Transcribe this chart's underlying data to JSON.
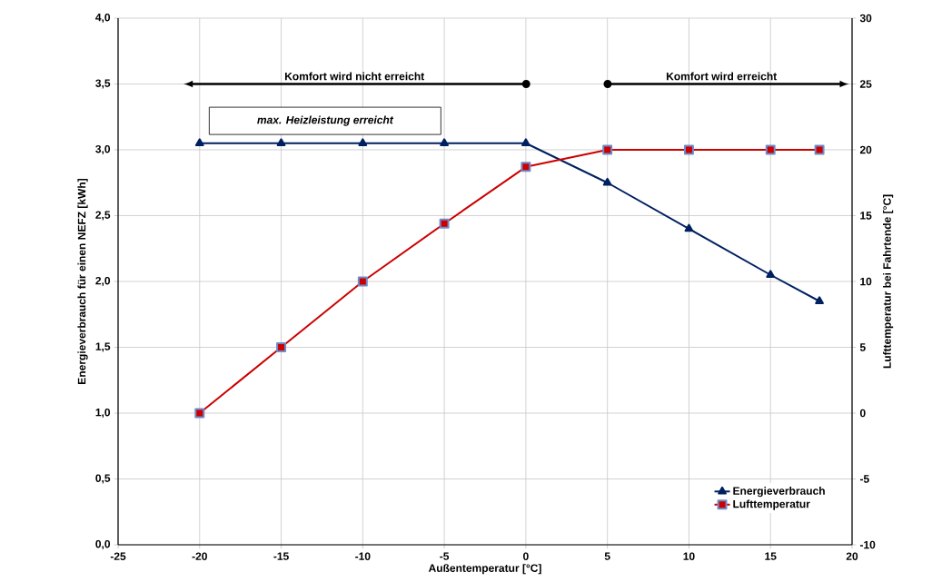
{
  "chart_data": {
    "type": "line",
    "xlabel": "Außentemperatur [°C]",
    "ylabel": "Energieverbrauch für einen NEFZ [kWh]",
    "y2label": "Lufttemperatur bei Fahrtende [°C]",
    "x": [
      -20,
      -15,
      -10,
      -5,
      0,
      5,
      10,
      15,
      18
    ],
    "series": [
      {
        "name": "Energieverbrauch",
        "color": "#002060",
        "marker": "triangle",
        "values": [
          3.05,
          3.05,
          3.05,
          3.05,
          3.05,
          2.75,
          2.4,
          2.05,
          1.85
        ]
      },
      {
        "name": "Lufttemperatur",
        "color": "#cc0000",
        "marker": "square",
        "axis": "y2",
        "values": [
          0,
          5,
          10,
          14.4,
          18.7,
          20,
          20,
          20,
          20
        ]
      }
    ],
    "xlim": [
      -25,
      20
    ],
    "xticks": [
      -25,
      -20,
      -15,
      -10,
      -5,
      0,
      5,
      10,
      15,
      20
    ],
    "ylim": [
      0,
      4
    ],
    "yticks": [
      {
        "value": 0,
        "label": "0,0"
      },
      {
        "value": 0.5,
        "label": "0,5"
      },
      {
        "value": 1,
        "label": "1,0"
      },
      {
        "value": 1.5,
        "label": "1,5"
      },
      {
        "value": 2,
        "label": "2,0"
      },
      {
        "value": 2.5,
        "label": "2,5"
      },
      {
        "value": 3,
        "label": "3,0"
      },
      {
        "value": 3.5,
        "label": "3,5"
      },
      {
        "value": 4,
        "label": "4,0"
      }
    ],
    "y2lim": [
      -10,
      30
    ],
    "y2ticks": [
      -10,
      -5,
      0,
      5,
      10,
      15,
      20,
      25,
      30
    ],
    "annotations": [
      "Komfort wird nicht erreicht",
      "Komfort wird erreicht",
      "max. Heizleistung erreicht"
    ],
    "grid": true,
    "legend": "bottom right"
  }
}
